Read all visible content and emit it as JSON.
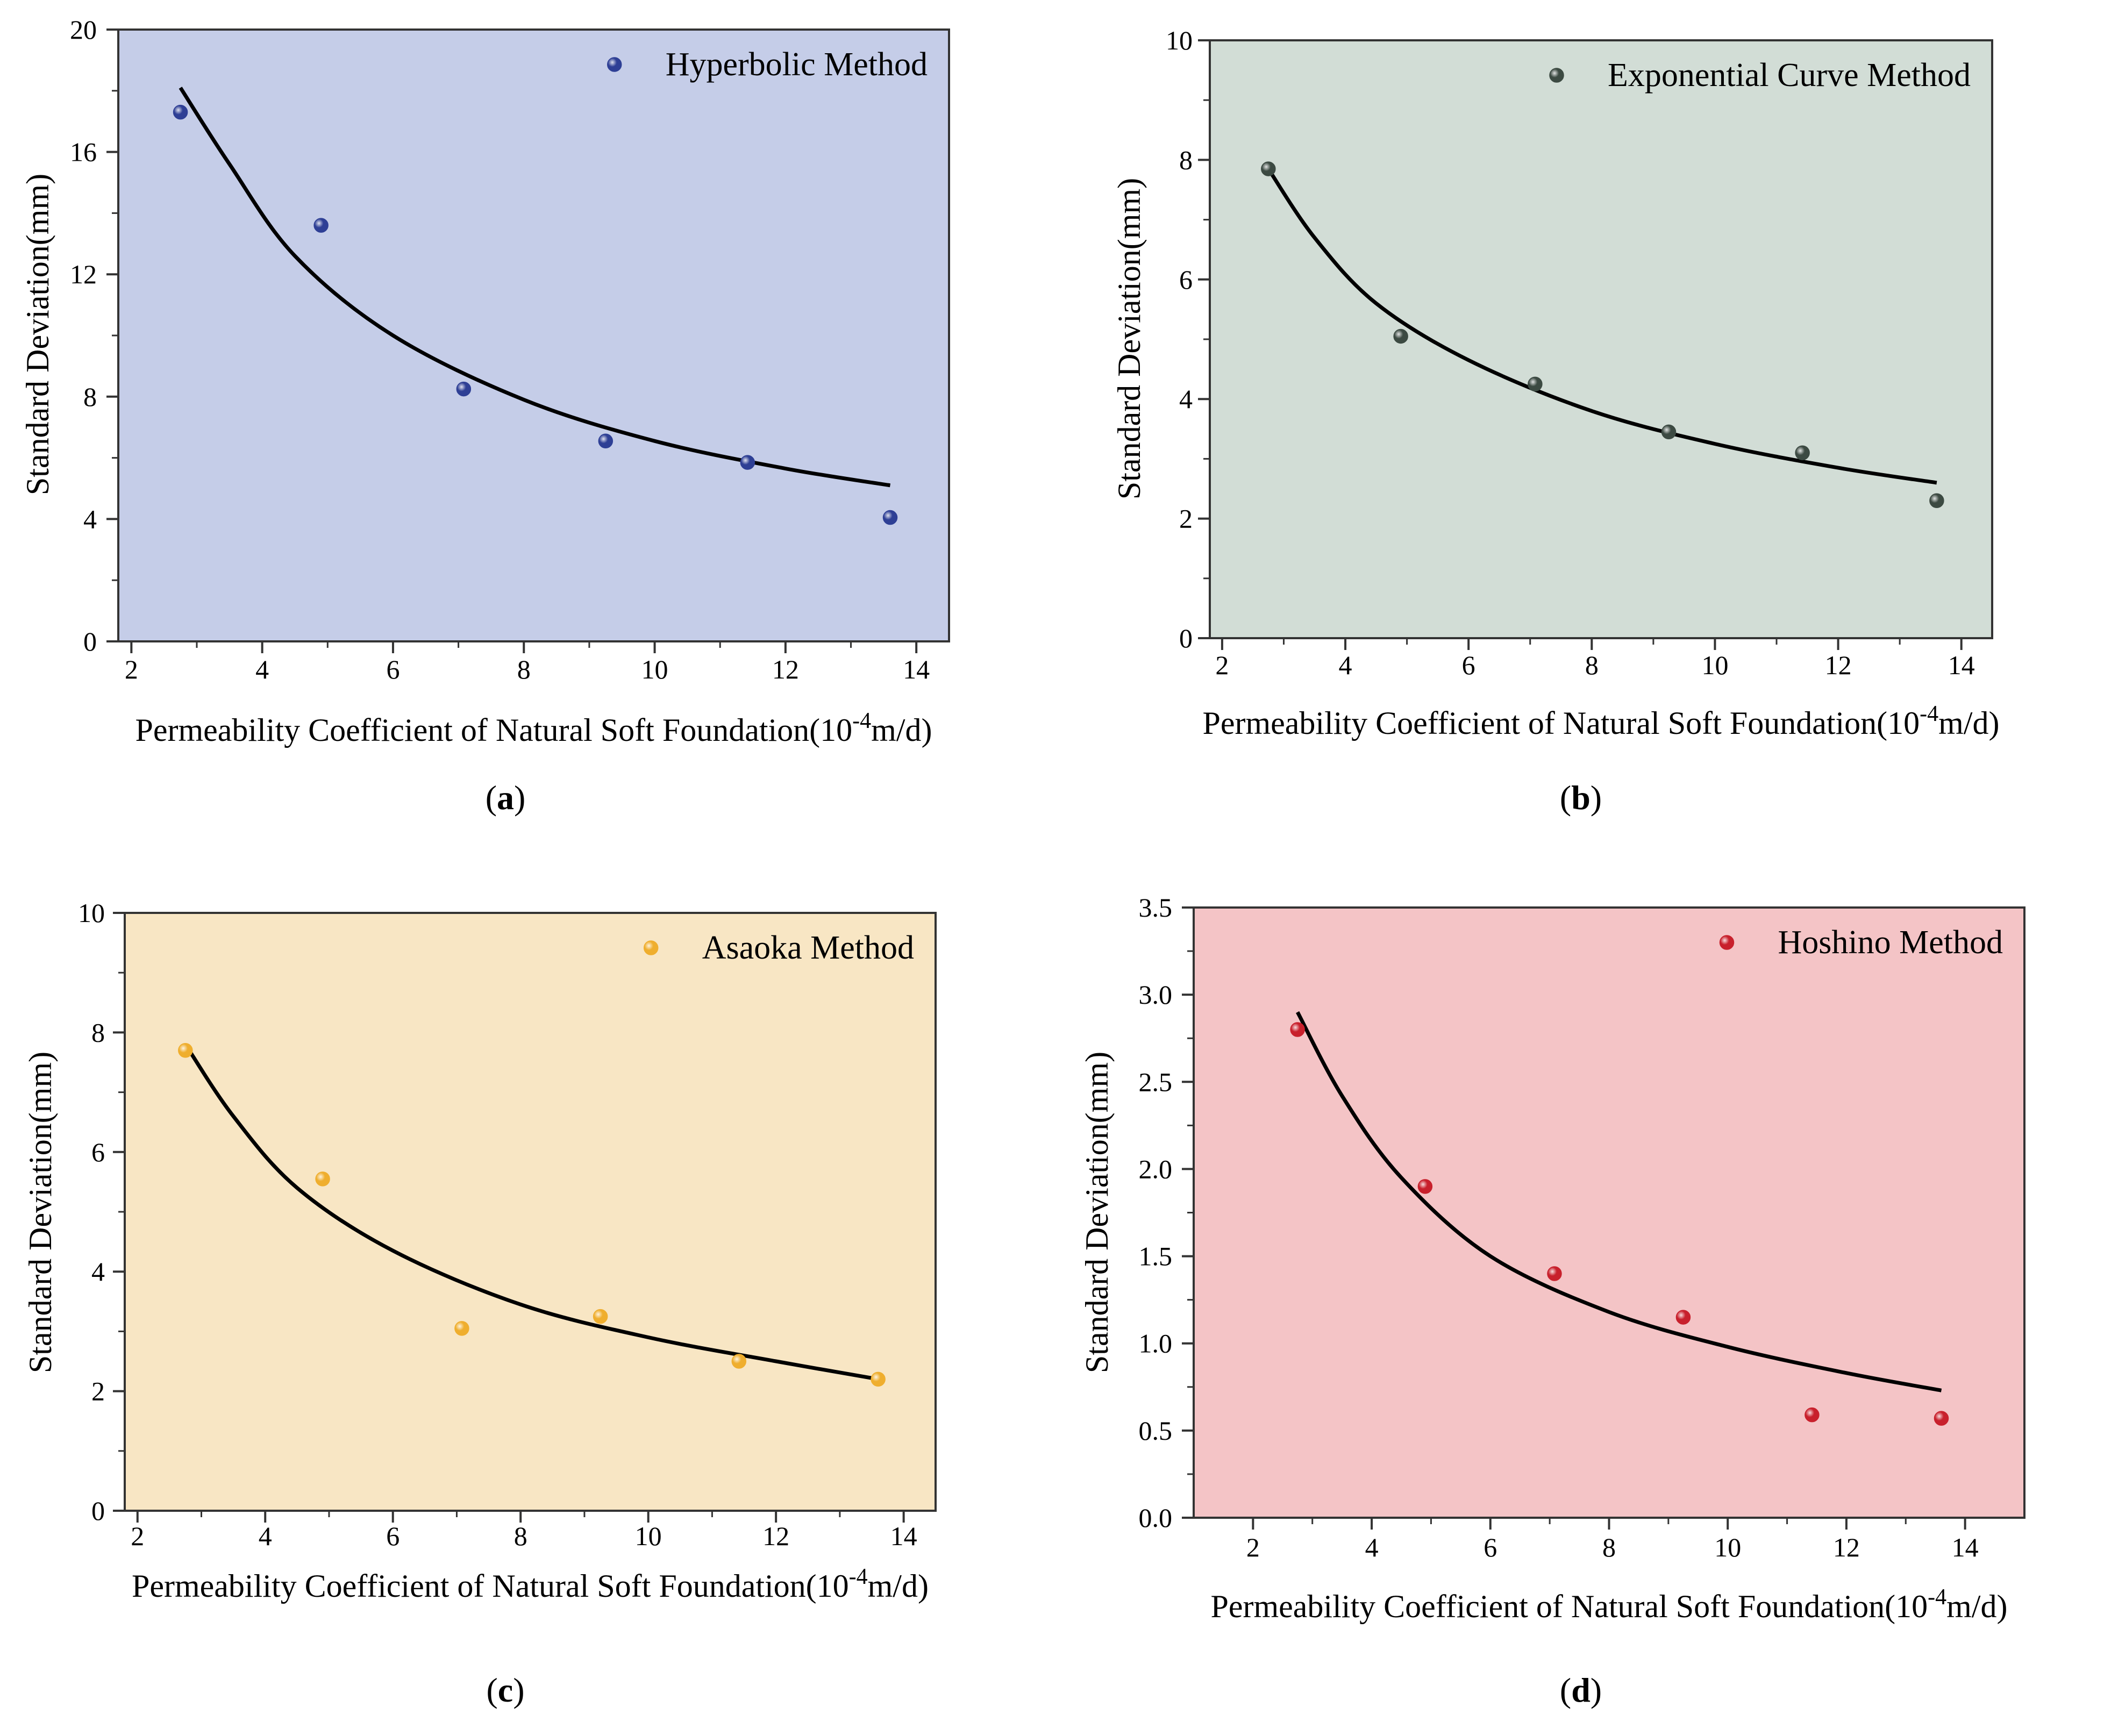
{
  "figure": {
    "panels": [
      {
        "caption_letter": "a",
        "legend_label": "Hyperbolic Method"
      },
      {
        "caption_letter": "b",
        "legend_label": "Exponential Curve Method"
      },
      {
        "caption_letter": "c",
        "legend_label": "Asaoka Method"
      },
      {
        "caption_letter": "d",
        "legend_label": "Hoshino Method"
      }
    ]
  },
  "chart_data": [
    {
      "type": "scatter",
      "panel": "a",
      "series_name": "Hyperbolic Method",
      "xlabel": "Permeability Coefficient of Natural Soft Foundation(10^-4m/d)",
      "xlabel_prefix": "Permeability Coefficient of Natural Soft Foundation(10",
      "xlabel_sup": "-4",
      "xlabel_suffix": "m/d)",
      "ylabel": "Standard Deviation(mm)",
      "xlim": [
        1.8,
        14.5
      ],
      "ylim": [
        0,
        20
      ],
      "xticks": [
        2,
        4,
        6,
        8,
        10,
        12,
        14
      ],
      "yticks": [
        0,
        4,
        8,
        12,
        16,
        20
      ],
      "yticks_minor": [
        2,
        6,
        10,
        14,
        18
      ],
      "ytick_decimals": 0,
      "x": [
        2.75,
        4.9,
        7.08,
        9.25,
        11.42,
        13.6
      ],
      "y": [
        17.3,
        13.6,
        8.25,
        6.55,
        5.85,
        4.05
      ],
      "fit_points": [
        [
          2.75,
          18.1
        ],
        [
          3.5,
          15.6
        ],
        [
          4.5,
          12.6
        ],
        [
          6,
          10.0
        ],
        [
          8,
          7.9
        ],
        [
          10,
          6.55
        ],
        [
          12,
          5.65
        ],
        [
          13.6,
          5.1
        ]
      ],
      "marker_color": "#2e3f95",
      "background_color": "#c5cde8",
      "line_color": "#000000"
    },
    {
      "type": "scatter",
      "panel": "b",
      "series_name": "Exponential Curve Method",
      "xlabel": "Permeability Coefficient of Natural Soft Foundation(10^-4m/d)",
      "xlabel_prefix": "Permeability Coefficient of Natural Soft Foundation(10",
      "xlabel_sup": "-4",
      "xlabel_suffix": "m/d)",
      "ylabel": "Standard Deviation(mm)",
      "xlim": [
        1.8,
        14.5
      ],
      "ylim": [
        0,
        10
      ],
      "xticks": [
        2,
        4,
        6,
        8,
        10,
        12,
        14
      ],
      "yticks": [
        0,
        2,
        4,
        6,
        8,
        10
      ],
      "yticks_minor": [
        1,
        3,
        5,
        7,
        9
      ],
      "ytick_decimals": 0,
      "x": [
        2.75,
        4.9,
        7.08,
        9.25,
        11.42,
        13.6
      ],
      "y": [
        7.85,
        5.05,
        4.25,
        3.45,
        3.1,
        2.3
      ],
      "fit_points": [
        [
          2.75,
          7.85
        ],
        [
          3.5,
          6.7
        ],
        [
          4.5,
          5.6
        ],
        [
          6,
          4.65
        ],
        [
          8,
          3.8
        ],
        [
          10,
          3.25
        ],
        [
          12,
          2.85
        ],
        [
          13.6,
          2.6
        ]
      ],
      "marker_color": "#3c4a42",
      "background_color": "#d2ddd6",
      "line_color": "#000000"
    },
    {
      "type": "scatter",
      "panel": "c",
      "series_name": "Asaoka Method",
      "xlabel": "Permeability Coefficient of Natural Soft Foundation(10^-4m/d)",
      "xlabel_prefix": "Permeability Coefficient of Natural Soft Foundation(10",
      "xlabel_sup": "-4",
      "xlabel_suffix": "m/d)",
      "ylabel": "Standard Deviation(mm)",
      "xlim": [
        1.8,
        14.5
      ],
      "ylim": [
        0,
        10
      ],
      "xticks": [
        2,
        4,
        6,
        8,
        10,
        12,
        14
      ],
      "yticks": [
        0,
        2,
        4,
        6,
        8,
        10
      ],
      "yticks_minor": [
        1,
        3,
        5,
        7,
        9
      ],
      "ytick_decimals": 0,
      "x": [
        2.75,
        4.9,
        7.08,
        9.25,
        11.42,
        13.6
      ],
      "y": [
        7.7,
        5.55,
        3.05,
        3.25,
        2.5,
        2.2
      ],
      "fit_points": [
        [
          2.75,
          7.8
        ],
        [
          3.5,
          6.6
        ],
        [
          4.5,
          5.4
        ],
        [
          6,
          4.35
        ],
        [
          8,
          3.45
        ],
        [
          10,
          2.9
        ],
        [
          12,
          2.5
        ],
        [
          13.6,
          2.2
        ]
      ],
      "marker_color": "#efae2e",
      "background_color": "#f8e6c4",
      "line_color": "#000000"
    },
    {
      "type": "scatter",
      "panel": "d",
      "series_name": "Hoshino Method",
      "xlabel": "Permeability Coefficient of Natural Soft Foundation(10^-4m/d)",
      "xlabel_prefix": "Permeability Coefficient of Natural Soft Foundation(10",
      "xlabel_sup": "-4",
      "xlabel_suffix": "m/d)",
      "ylabel": "Standard Deviation(mm)",
      "xlim": [
        1,
        15
      ],
      "ylim": [
        0,
        3.5
      ],
      "xticks": [
        2,
        4,
        6,
        8,
        10,
        12,
        14
      ],
      "yticks": [
        0,
        0.5,
        1.0,
        1.5,
        2.0,
        2.5,
        3.0,
        3.5
      ],
      "yticks_minor": [
        0.25,
        0.75,
        1.25,
        1.75,
        2.25,
        2.75,
        3.25
      ],
      "ytick_decimals": 1,
      "x": [
        2.75,
        4.9,
        7.08,
        9.25,
        11.42,
        13.6
      ],
      "y": [
        2.8,
        1.9,
        1.4,
        1.15,
        0.59,
        0.57
      ],
      "fit_points": [
        [
          2.75,
          2.9
        ],
        [
          3.5,
          2.42
        ],
        [
          4.5,
          1.95
        ],
        [
          6,
          1.5
        ],
        [
          8,
          1.18
        ],
        [
          10,
          0.98
        ],
        [
          12,
          0.83
        ],
        [
          13.6,
          0.73
        ]
      ],
      "marker_color": "#c8202c",
      "background_color": "#f4c4c6",
      "line_color": "#000000"
    }
  ]
}
